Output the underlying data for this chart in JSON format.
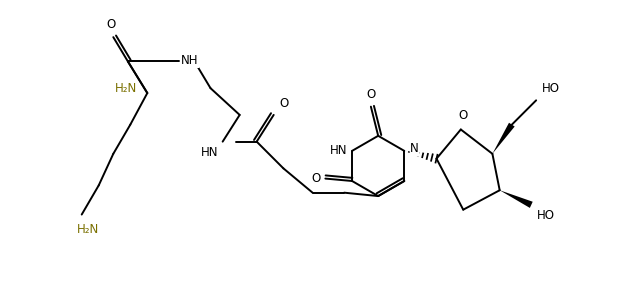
{
  "bg_color": "#ffffff",
  "line_color": "#000000",
  "bond_lw": 1.4,
  "figsize": [
    6.3,
    2.93
  ],
  "dpi": 100,
  "xlim": [
    -0.5,
    10.5
  ],
  "ylim": [
    -0.5,
    5.5
  ],
  "fs": 8.5
}
